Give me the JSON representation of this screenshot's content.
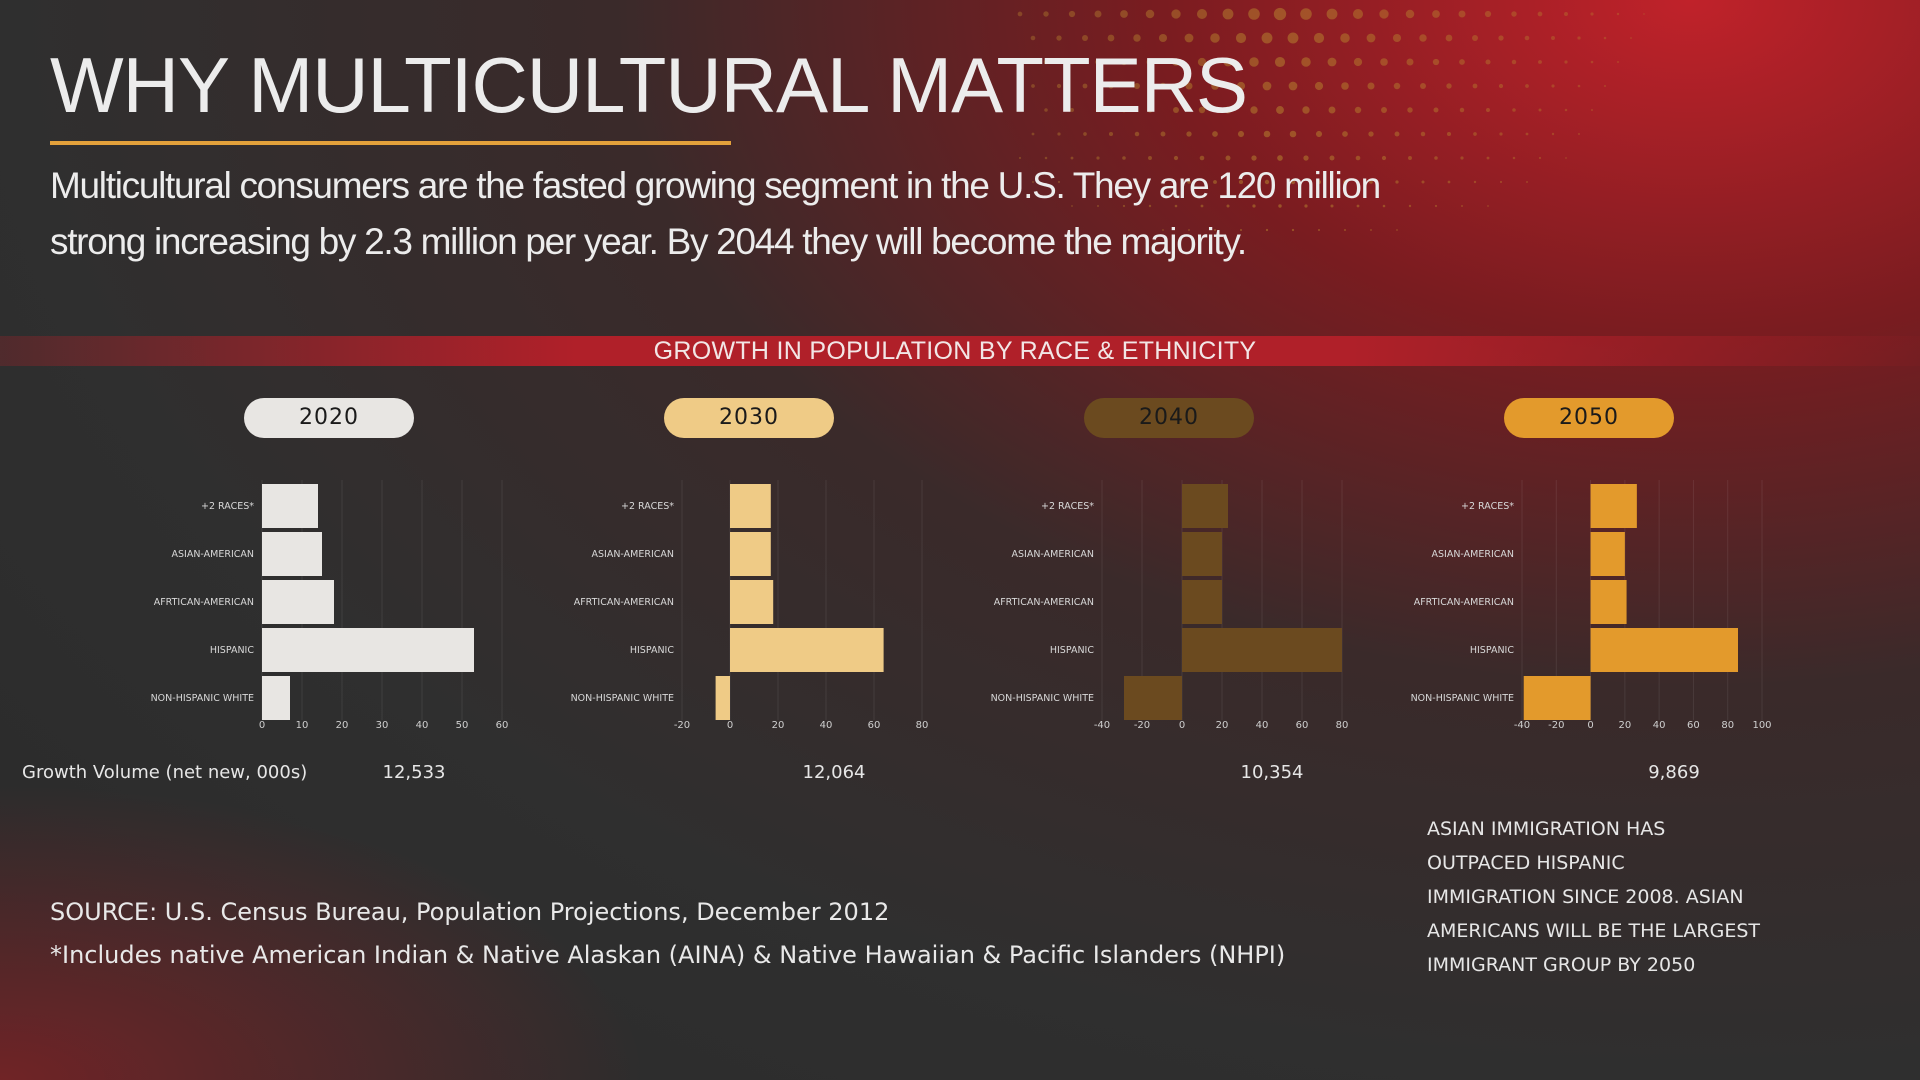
{
  "title": "WHY MULTICULTURAL MATTERS",
  "subtitle_lines": [
    "Multicultural consumers are the fasted growing segment in the U.S. They are 120 million",
    "strong increasing by 2.3 million per year. By 2044 they will become the majority."
  ],
  "section_title": "GROWTH IN POPULATION BY RACE & ETHNICITY",
  "colors": {
    "accent_rule": "#e3a13b",
    "band": "#b02029",
    "year_2020": "#e8e6e3",
    "year_2030": "#efcb86",
    "year_2040": "#6b4a1f",
    "year_2050": "#e39a2c"
  },
  "chart_data": [
    {
      "type": "bar",
      "orientation": "horizontal",
      "year_label": "2020",
      "categories": [
        "+2 RACES*",
        "ASIAN-AMERICAN",
        "AFRTICAN-AMERICAN",
        "HISPANIC",
        "NON-HISPANIC WHITE"
      ],
      "values": [
        14,
        15,
        18,
        53,
        7
      ],
      "xlim": [
        0,
        60
      ],
      "xticks": [
        0,
        10,
        20,
        30,
        40,
        50,
        60
      ],
      "grid": true,
      "color": "#e8e6e3",
      "growth_volume": "12,533"
    },
    {
      "type": "bar",
      "orientation": "horizontal",
      "year_label": "2030",
      "categories": [
        "+2 RACES*",
        "ASIAN-AMERICAN",
        "AFRTICAN-AMERICAN",
        "HISPANIC",
        "NON-HISPANIC WHITE"
      ],
      "values": [
        17,
        17,
        18,
        64,
        -6
      ],
      "xlim": [
        -20,
        80
      ],
      "xticks": [
        -20,
        0,
        20,
        40,
        60,
        80
      ],
      "grid": true,
      "color": "#efcb86",
      "growth_volume": "12,064"
    },
    {
      "type": "bar",
      "orientation": "horizontal",
      "year_label": "2040",
      "categories": [
        "+2 RACES*",
        "ASIAN-AMERICAN",
        "AFRTICAN-AMERICAN",
        "HISPANIC",
        "NON-HISPANIC WHITE"
      ],
      "values": [
        23,
        20,
        20,
        80,
        -29
      ],
      "xlim": [
        -40,
        80
      ],
      "xticks": [
        -40,
        -20,
        0,
        20,
        40,
        60,
        80
      ],
      "grid": true,
      "color": "#6b4a1f",
      "growth_volume": "10,354"
    },
    {
      "type": "bar",
      "orientation": "horizontal",
      "year_label": "2050",
      "categories": [
        "+2 RACES*",
        "ASIAN-AMERICAN",
        "AFRTICAN-AMERICAN",
        "HISPANIC",
        "NON-HISPANIC WHITE"
      ],
      "values": [
        27,
        20,
        21,
        86,
        -39
      ],
      "xlim": [
        -40,
        100
      ],
      "xticks": [
        -40,
        -20,
        0,
        20,
        40,
        60,
        80,
        100
      ],
      "grid": true,
      "color": "#e39a2c",
      "growth_volume": "9,869"
    }
  ],
  "growth_volume_label": "Growth Volume (net new, 000s)",
  "source": "SOURCE: U.S. Census Bureau, Population Projections, December 2012",
  "footnote": "*Includes native American Indian & Native Alaskan (AINA) & Native Hawaiian & Pacific Islanders (NHPI)",
  "note_lines": [
    "ASIAN IMMIGRATION HAS",
    "OUTPACED HISPANIC",
    "IMMIGRATION SINCE 2008. ASIAN",
    "AMERICANS WILL BE THE LARGEST",
    "IMMIGRANT GROUP BY 2050"
  ]
}
